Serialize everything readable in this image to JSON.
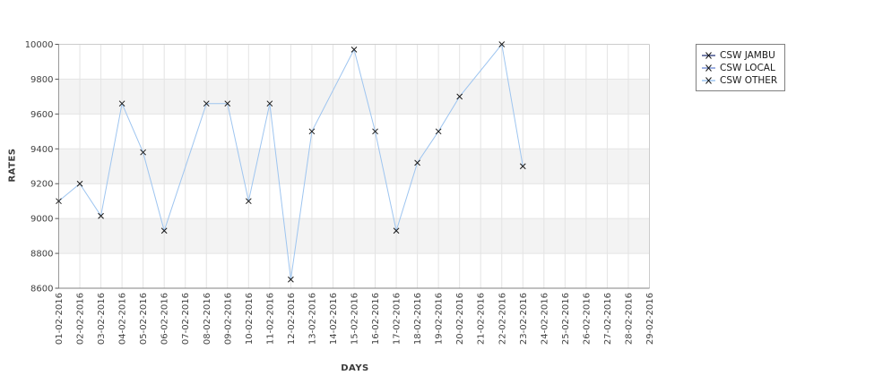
{
  "chart_data": {
    "type": "line",
    "title": "",
    "xlabel": "DAYS",
    "ylabel": "RATES",
    "categories": [
      "01-02-2016",
      "02-02-2016",
      "03-02-2016",
      "04-02-2016",
      "05-02-2016",
      "06-02-2016",
      "07-02-2016",
      "08-02-2016",
      "09-02-2016",
      "10-02-2016",
      "11-02-2016",
      "12-02-2016",
      "13-02-2016",
      "14-02-2016",
      "15-02-2016",
      "16-02-2016",
      "17-02-2016",
      "18-02-2016",
      "19-02-2016",
      "20-02-2016",
      "21-02-2016",
      "22-02-2016",
      "23-02-2016",
      "24-02-2016",
      "25-02-2016",
      "26-02-2016",
      "27-02-2016",
      "28-02-2016",
      "29-02-2016"
    ],
    "ylim": [
      8600,
      10000
    ],
    "y_ticks": [
      8600,
      8800,
      9000,
      9200,
      9400,
      9600,
      9800,
      10000
    ],
    "grid": true,
    "plot_bands": "alternating-horizontal",
    "legend_position": "top-right",
    "series": [
      {
        "name": "CSW JAMBU",
        "color": "#46538c",
        "values": []
      },
      {
        "name": "CSW LOCAL",
        "color": "#7d96d8",
        "values": []
      },
      {
        "name": "CSW OTHER",
        "color": "#9ec5f0",
        "values": [
          9100,
          9200,
          9015,
          9660,
          9380,
          8930,
          null,
          9660,
          9660,
          9100,
          9660,
          8650,
          9500,
          null,
          9970,
          9500,
          8930,
          9320,
          9500,
          9700,
          null,
          10000,
          9300,
          null,
          null,
          null,
          null,
          null,
          null
        ]
      }
    ]
  },
  "style": {
    "background": "#ffffff",
    "band_fill": "#f3f3f3",
    "grid_line": "#e4e4e4",
    "border_light": "#cccccc",
    "axis_left": "#999999",
    "axis_bottom": "#808080",
    "tick_color": "#555555",
    "tick_label_color": "#3f3f3f",
    "marker_color": "#1a1a1a",
    "legend_border": "#808080"
  }
}
